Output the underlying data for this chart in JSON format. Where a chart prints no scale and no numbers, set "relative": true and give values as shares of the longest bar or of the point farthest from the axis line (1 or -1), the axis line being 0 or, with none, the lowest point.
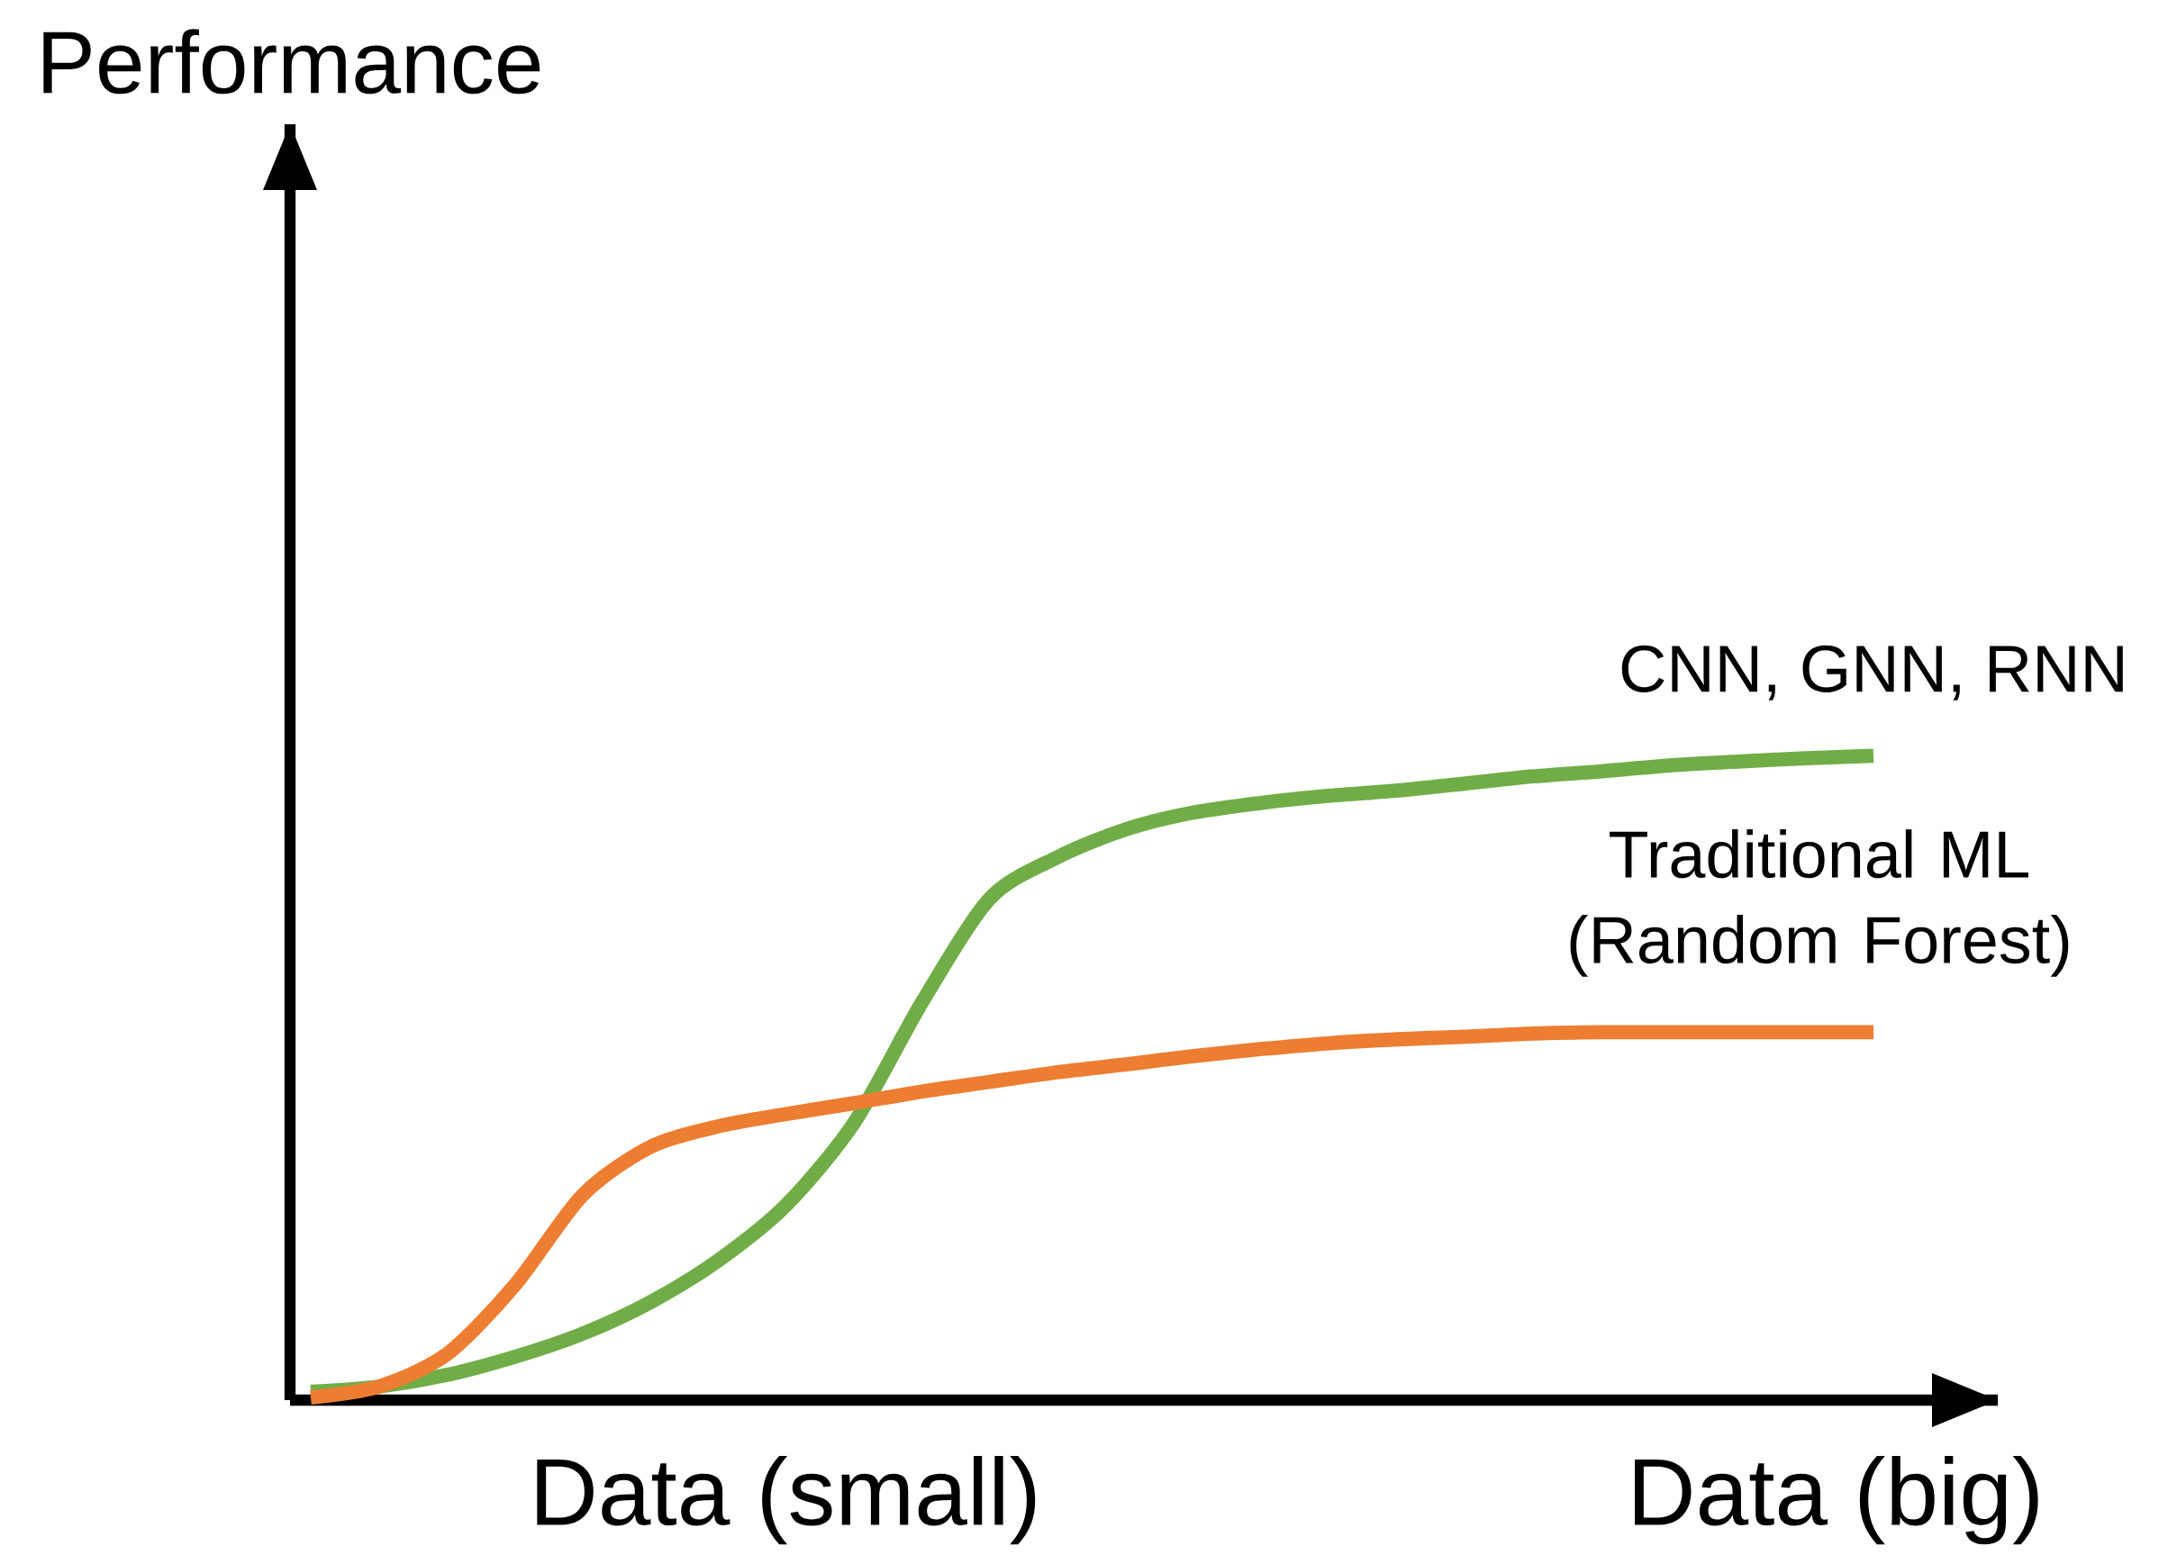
{
  "chart_data": {
    "type": "line",
    "relative": true,
    "legend": false,
    "tick_labels": false,
    "categories": [
      null,
      null,
      null,
      null,
      null,
      null,
      null,
      null,
      null,
      null,
      null,
      null,
      null,
      null,
      null,
      null,
      null,
      null,
      null,
      null,
      null,
      null,
      null,
      null
    ],
    "series": [
      {
        "name": "CNN, GNN, RNN",
        "color": "#70ad47",
        "values": [
          0.013,
          0.021,
          0.039,
          0.067,
          0.103,
          0.152,
          0.217,
          0.303,
          0.431,
          0.618,
          0.779,
          0.843,
          0.886,
          0.912,
          0.927,
          0.938,
          0.946,
          0.957,
          0.968,
          0.976,
          0.985,
          0.991,
          0.996,
          1
        ]
      },
      {
        "name": "Traditional ML (Random Forest)",
        "color": "#ed7d31",
        "values": [
          0.004,
          0.021,
          0.071,
          0.178,
          0.318,
          0.393,
          0.425,
          0.444,
          0.461,
          0.479,
          0.494,
          0.509,
          0.521,
          0.534,
          0.545,
          0.554,
          0.56,
          0.564,
          0.569,
          0.571,
          0.571,
          0.571,
          0.571,
          0.571
        ]
      }
    ],
    "annotations": [
      "Performance",
      "Data (small)",
      "Data (big)"
    ]
  }
}
